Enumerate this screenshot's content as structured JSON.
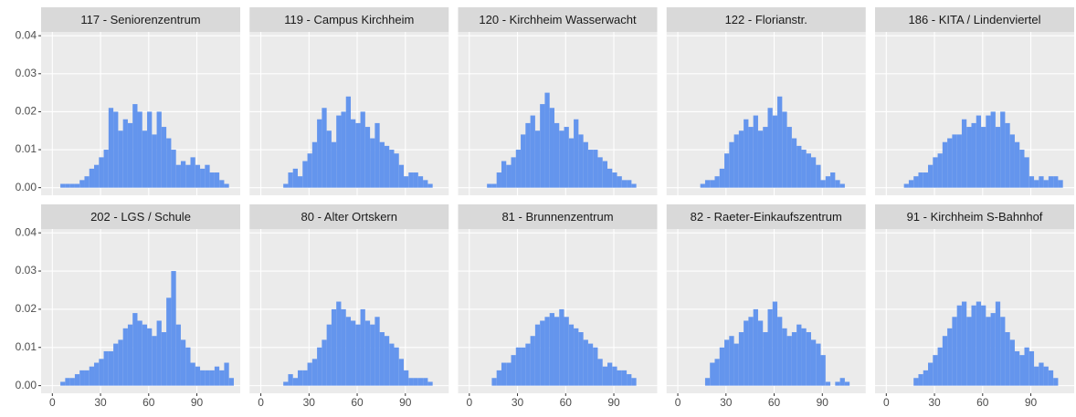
{
  "chart_data": {
    "type": "histogram",
    "color": "#6495ED",
    "bins": [
      5,
      8,
      11,
      14,
      17,
      20,
      23,
      26,
      29,
      32,
      35,
      38,
      41,
      44,
      47,
      50,
      53,
      56,
      59,
      62,
      65,
      68,
      71,
      74,
      77,
      80,
      83,
      86,
      89,
      92,
      95,
      98,
      101,
      104,
      107,
      110,
      113
    ],
    "xlim": [
      -7,
      117
    ],
    "ylim": [
      -0.002,
      0.041
    ],
    "xticks": [
      0,
      30,
      60,
      90
    ],
    "yticks": [
      {
        "value": 0,
        "label": "0.00"
      },
      {
        "value": 0.01,
        "label": "0.01"
      },
      {
        "value": 0.02,
        "label": "0.02"
      },
      {
        "value": 0.03,
        "label": "0.03"
      },
      {
        "value": 0.04,
        "label": "0.04"
      }
    ],
    "grid": true,
    "series": [
      {
        "name": "117 - Seniorenzentrum",
        "values": [
          0.001,
          0.001,
          0.001,
          0.001,
          0.002,
          0.003,
          0.005,
          0.006,
          0.008,
          0.01,
          0.021,
          0.02,
          0.015,
          0.018,
          0.017,
          0.022,
          0.02,
          0.015,
          0.02,
          0.014,
          0.02,
          0.016,
          0.013,
          0.01,
          0.006,
          0.007,
          0.006,
          0.008,
          0.006,
          0.005,
          0.006,
          0.004,
          0.004,
          0.002,
          0.001,
          0
        ]
      },
      {
        "name": "119 - Campus Kirchheim",
        "values": [
          0,
          0,
          0,
          0.001,
          0.004,
          0.005,
          0.003,
          0.007,
          0.009,
          0.012,
          0.018,
          0.021,
          0.015,
          0.012,
          0.019,
          0.02,
          0.024,
          0.018,
          0.017,
          0.02,
          0.016,
          0.013,
          0.017,
          0.012,
          0.011,
          0.01,
          0.009,
          0.006,
          0.003,
          0.004,
          0.004,
          0.003,
          0.002,
          0.001,
          0,
          0
        ]
      },
      {
        "name": "120 - Kirchheim Wasserwacht",
        "values": [
          0,
          0,
          0.001,
          0.001,
          0.004,
          0.007,
          0.006,
          0.008,
          0.01,
          0.014,
          0.017,
          0.019,
          0.015,
          0.022,
          0.025,
          0.021,
          0.017,
          0.015,
          0.016,
          0.013,
          0.018,
          0.014,
          0.012,
          0.01,
          0.01,
          0.008,
          0.007,
          0.005,
          0.004,
          0.003,
          0.002,
          0.002,
          0.001,
          0,
          0,
          0
        ]
      },
      {
        "name": "122 - Florianstr.",
        "values": [
          0,
          0,
          0,
          0.001,
          0.002,
          0.002,
          0.003,
          0.005,
          0.009,
          0.012,
          0.014,
          0.015,
          0.018,
          0.016,
          0.019,
          0.015,
          0.016,
          0.021,
          0.019,
          0.024,
          0.02,
          0.016,
          0.013,
          0.011,
          0.01,
          0.009,
          0.008,
          0.006,
          0.002,
          0.003,
          0.004,
          0.002,
          0.001,
          0,
          0,
          0
        ]
      },
      {
        "name": "186 - KITA / Lindenviertel",
        "values": [
          0,
          0,
          0.001,
          0.002,
          0.003,
          0.004,
          0.004,
          0.006,
          0.008,
          0.009,
          0.012,
          0.013,
          0.014,
          0.014,
          0.018,
          0.016,
          0.017,
          0.019,
          0.016,
          0.019,
          0.02,
          0.016,
          0.02,
          0.017,
          0.014,
          0.012,
          0.01,
          0.008,
          0.003,
          0.002,
          0.003,
          0.002,
          0.003,
          0.003,
          0.002,
          0
        ]
      },
      {
        "name": "202 - LGS / Schule",
        "values": [
          0.001,
          0.002,
          0.002,
          0.003,
          0.004,
          0.004,
          0.005,
          0.006,
          0.007,
          0.009,
          0.009,
          0.011,
          0.012,
          0.015,
          0.016,
          0.019,
          0.017,
          0.016,
          0.015,
          0.013,
          0.017,
          0.014,
          0.023,
          0.03,
          0.016,
          0.012,
          0.01,
          0.006,
          0.005,
          0.004,
          0.004,
          0.004,
          0.005,
          0.004,
          0.006,
          0.002
        ]
      },
      {
        "name": "80 - Alter Ortskern",
        "values": [
          0,
          0,
          0,
          0.001,
          0.003,
          0.002,
          0.004,
          0.004,
          0.006,
          0.007,
          0.01,
          0.012,
          0.016,
          0.02,
          0.022,
          0.02,
          0.018,
          0.017,
          0.016,
          0.02,
          0.017,
          0.016,
          0.018,
          0.014,
          0.013,
          0.011,
          0.01,
          0.007,
          0.004,
          0.002,
          0.002,
          0.002,
          0.002,
          0.001,
          0,
          0
        ]
      },
      {
        "name": "81 - Brunnenzentrum",
        "values": [
          0,
          0,
          0,
          0.002,
          0.004,
          0.006,
          0.006,
          0.008,
          0.01,
          0.01,
          0.011,
          0.013,
          0.016,
          0.017,
          0.018,
          0.019,
          0.018,
          0.02,
          0.018,
          0.016,
          0.015,
          0.014,
          0.012,
          0.011,
          0.01,
          0.007,
          0.005,
          0.006,
          0.005,
          0.004,
          0.004,
          0.003,
          0.002,
          0,
          0,
          0
        ]
      },
      {
        "name": "82 - Raeter-Einkaufszentrum",
        "values": [
          0,
          0,
          0,
          0,
          0.002,
          0.006,
          0.007,
          0.01,
          0.012,
          0.013,
          0.011,
          0.014,
          0.017,
          0.018,
          0.02,
          0.017,
          0.014,
          0.02,
          0.022,
          0.018,
          0.015,
          0.013,
          0.014,
          0.016,
          0.015,
          0.014,
          0.012,
          0.011,
          0.008,
          0.001,
          0,
          0.001,
          0.002,
          0.001,
          0,
          0
        ]
      },
      {
        "name": "91 - Kirchheim S-Bahnhof",
        "values": [
          0,
          0,
          0,
          0,
          0.002,
          0.003,
          0.004,
          0.006,
          0.008,
          0.01,
          0.013,
          0.015,
          0.018,
          0.021,
          0.022,
          0.018,
          0.021,
          0.022,
          0.021,
          0.018,
          0.019,
          0.022,
          0.018,
          0.014,
          0.012,
          0.009,
          0.008,
          0.01,
          0.009,
          0.005,
          0.006,
          0.005,
          0.004,
          0.002,
          0,
          0
        ]
      }
    ]
  }
}
